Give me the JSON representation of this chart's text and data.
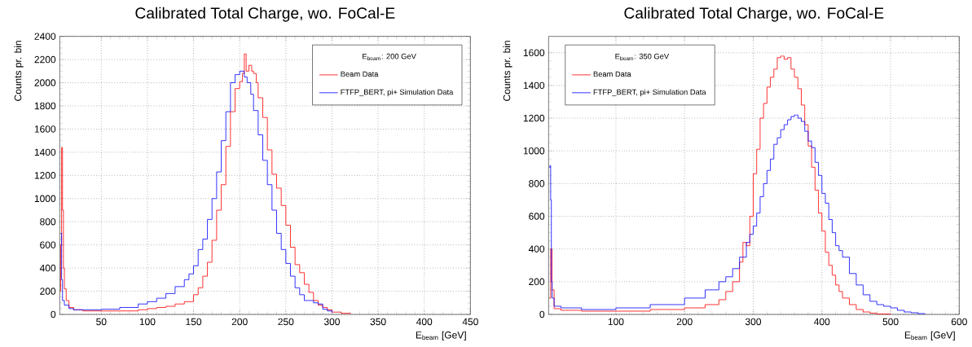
{
  "chart_data": [
    {
      "type": "step",
      "title": "Calibrated Total Charge, wo. FoCal-E",
      "xlabel": "E$_{beam}$ [GeV]",
      "ylabel": "Counts pr. bin",
      "legend_title": "E$_{beam}$: 200 GeV",
      "legend": "top right",
      "grid": true,
      "xlim": [
        5,
        450
      ],
      "ylim": [
        0,
        2400
      ],
      "xticks": [
        50,
        100,
        150,
        200,
        250,
        300,
        350,
        400,
        450
      ],
      "yticks": [
        0,
        200,
        400,
        600,
        800,
        1000,
        1200,
        1400,
        1600,
        1800,
        2000,
        2200,
        2400
      ],
      "series": [
        {
          "name": "Beam Data",
          "color": "#ff0000",
          "x": [
            5,
            6,
            7,
            8,
            9,
            10,
            12,
            15,
            20,
            30,
            50,
            70,
            90,
            100,
            110,
            120,
            130,
            140,
            150,
            155,
            160,
            165,
            170,
            175,
            180,
            185,
            190,
            195,
            200,
            203,
            205,
            207,
            210,
            213,
            215,
            218,
            220,
            225,
            230,
            235,
            240,
            245,
            250,
            255,
            260,
            265,
            270,
            275,
            280,
            285,
            290,
            295,
            300,
            310,
            320
          ],
          "values": [
            200,
            600,
            1440,
            900,
            400,
            220,
            120,
            60,
            40,
            30,
            30,
            30,
            40,
            50,
            60,
            70,
            90,
            110,
            170,
            230,
            330,
            450,
            640,
            900,
            1120,
            1450,
            1750,
            1950,
            2010,
            2080,
            2250,
            2100,
            2150,
            2100,
            2080,
            2000,
            1870,
            1700,
            1420,
            1210,
            1090,
            940,
            770,
            580,
            430,
            360,
            260,
            190,
            120,
            80,
            60,
            40,
            20,
            10,
            5
          ]
        },
        {
          "name": "FTFP_BERT, pi+ Simulation Data",
          "color": "#0000ff",
          "x": [
            6,
            7,
            8,
            10,
            15,
            20,
            30,
            50,
            70,
            90,
            100,
            110,
            120,
            130,
            140,
            145,
            150,
            155,
            160,
            165,
            170,
            175,
            180,
            185,
            190,
            195,
            200,
            205,
            208,
            212,
            215,
            220,
            225,
            230,
            235,
            240,
            245,
            250,
            255,
            260,
            265,
            270,
            280,
            285,
            290,
            295,
            300
          ],
          "values": [
            700,
            300,
            120,
            80,
            50,
            40,
            40,
            45,
            60,
            90,
            110,
            140,
            180,
            240,
            300,
            350,
            420,
            560,
            650,
            820,
            1000,
            1230,
            1500,
            1750,
            2000,
            2070,
            2100,
            2050,
            2000,
            1900,
            1760,
            1550,
            1330,
            1120,
            900,
            700,
            560,
            440,
            330,
            230,
            170,
            120,
            100,
            90,
            45,
            30,
            15
          ]
        }
      ]
    },
    {
      "type": "step",
      "title": "Calibrated Total Charge, wo. FoCal-E",
      "xlabel": "E$_{beam}$ [GeV]",
      "ylabel": "Counts pr. bin",
      "legend_title": "E$_{beam}$: 350 GeV",
      "legend": "top left",
      "grid": true,
      "xlim": [
        2,
        600
      ],
      "ylim": [
        0,
        1700
      ],
      "xticks": [
        100,
        200,
        300,
        400,
        500,
        600
      ],
      "yticks": [
        0,
        200,
        400,
        600,
        800,
        1000,
        1200,
        1400,
        1600
      ],
      "series": [
        {
          "name": "Beam Data",
          "color": "#ff0000",
          "x": [
            3,
            5,
            7,
            10,
            20,
            50,
            100,
            150,
            200,
            230,
            250,
            260,
            270,
            280,
            285,
            290,
            295,
            300,
            305,
            310,
            315,
            320,
            325,
            330,
            335,
            340,
            345,
            350,
            355,
            360,
            365,
            370,
            375,
            380,
            385,
            390,
            395,
            400,
            405,
            410,
            415,
            420,
            425,
            430,
            440,
            450,
            460,
            470,
            480,
            500
          ],
          "values": [
            100,
            400,
            150,
            35,
            25,
            20,
            20,
            30,
            40,
            60,
            90,
            140,
            200,
            320,
            440,
            420,
            600,
            860,
            1010,
            1200,
            1290,
            1390,
            1450,
            1500,
            1570,
            1580,
            1560,
            1570,
            1500,
            1450,
            1380,
            1280,
            1160,
            1030,
            900,
            760,
            620,
            510,
            380,
            300,
            240,
            180,
            140,
            100,
            60,
            30,
            15,
            8,
            3,
            1
          ]
        },
        {
          "name": "FTFP_BERT, pi+ Simulation Data",
          "color": "#0000ff",
          "x": [
            3,
            4,
            5,
            6,
            7,
            10,
            20,
            50,
            100,
            150,
            200,
            230,
            250,
            260,
            270,
            280,
            290,
            295,
            300,
            305,
            310,
            315,
            320,
            325,
            330,
            335,
            340,
            345,
            350,
            355,
            360,
            365,
            370,
            375,
            380,
            385,
            390,
            395,
            400,
            405,
            410,
            415,
            420,
            425,
            430,
            440,
            450,
            460,
            470,
            480,
            490,
            500,
            510,
            520,
            530,
            540,
            550
          ],
          "values": [
            900,
            910,
            700,
            200,
            100,
            50,
            40,
            30,
            40,
            60,
            100,
            150,
            200,
            230,
            280,
            350,
            440,
            490,
            540,
            620,
            720,
            800,
            880,
            950,
            1040,
            1080,
            1130,
            1160,
            1190,
            1210,
            1220,
            1200,
            1180,
            1120,
            1060,
            1020,
            930,
            850,
            740,
            680,
            580,
            500,
            420,
            390,
            350,
            250,
            180,
            120,
            80,
            60,
            50,
            40,
            25,
            15,
            10,
            5,
            2
          ]
        }
      ]
    }
  ]
}
